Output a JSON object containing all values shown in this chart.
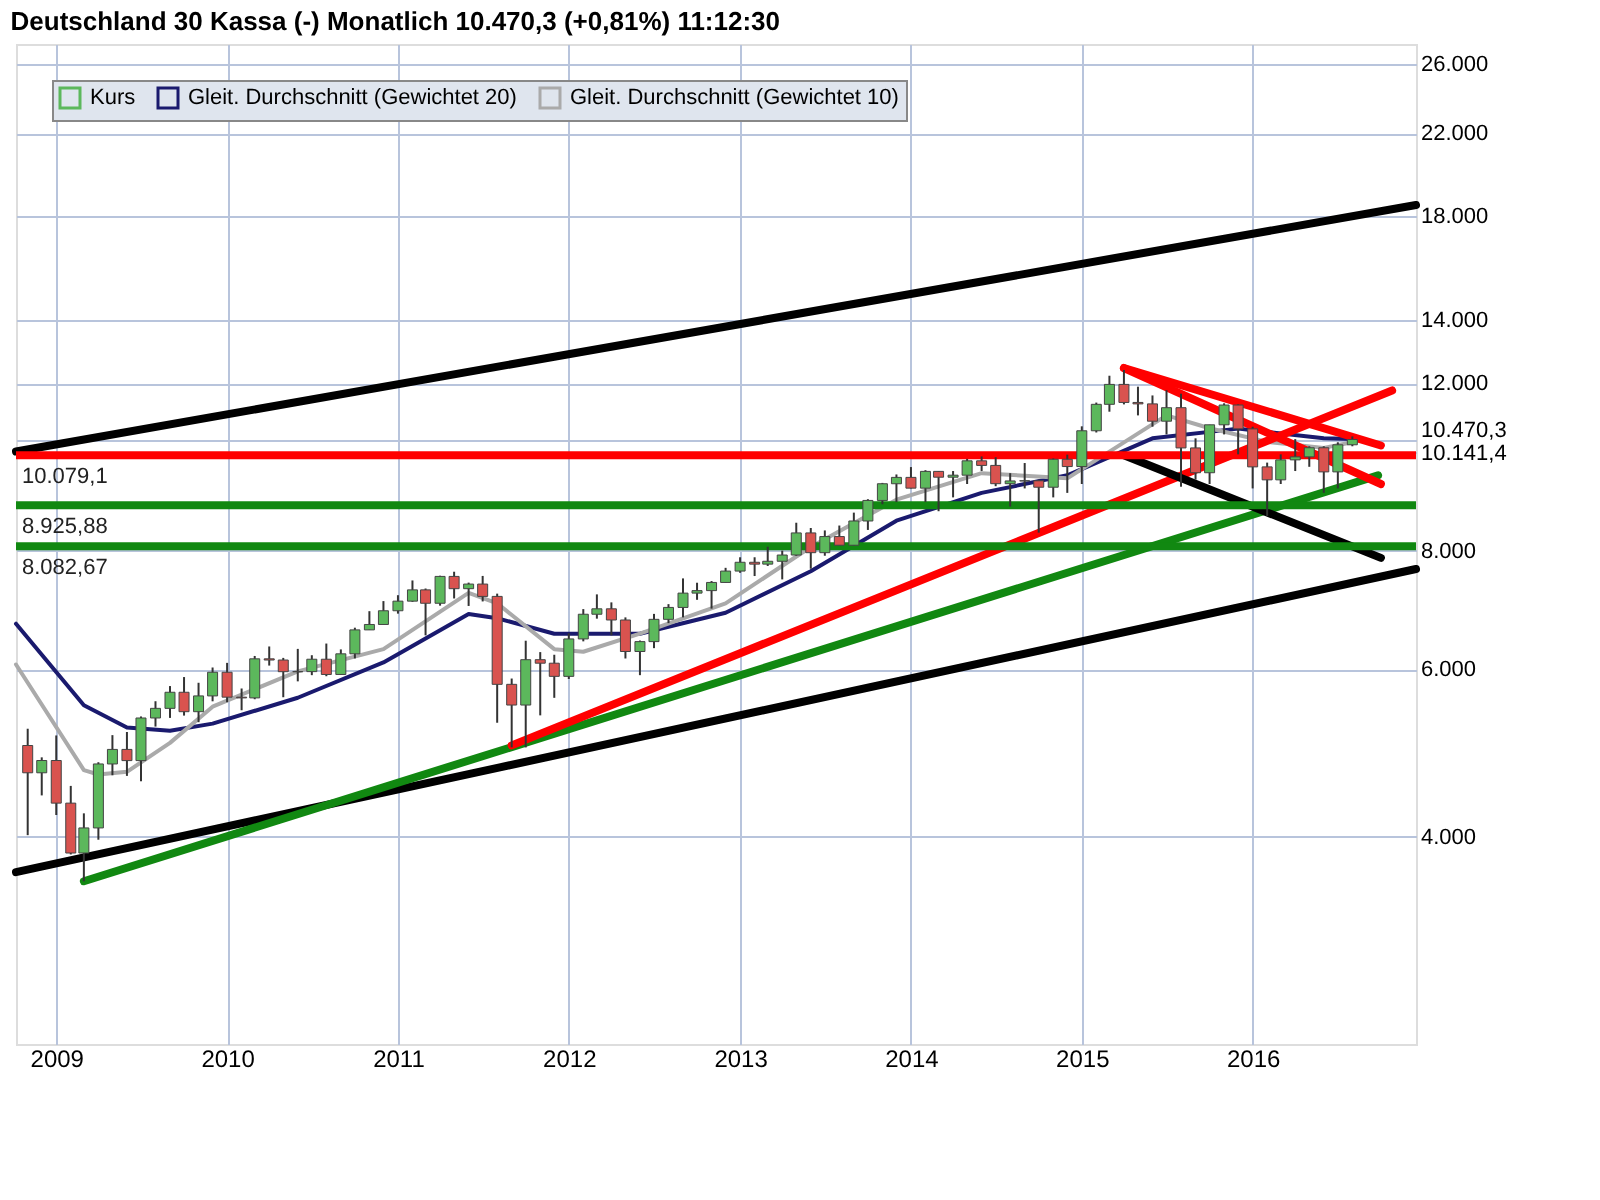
{
  "chart_data": {
    "type": "candlestick",
    "title": "Deutschland 30 Kassa (-)   Monatlich   10.470,3 (+0,81%)   11:12:30",
    "xlim": [
      "2008-10-07",
      "2016-12-15"
    ],
    "xticks": [
      "2009",
      "2010",
      "2011",
      "2012",
      "2013",
      "2014",
      "2015",
      "2016"
    ],
    "ylim": [
      2420,
      27300
    ],
    "log": "y",
    "grid": true,
    "legend": "top left",
    "yticks": [
      {
        "value": 4000,
        "label": "4.000"
      },
      {
        "value": 6000,
        "label": "6.000"
      },
      {
        "value": 8000,
        "label": "8.000"
      },
      {
        "value": 10141.4,
        "label": "10.141,4"
      },
      {
        "value": 10470.3,
        "label": "10.470,3"
      },
      {
        "value": 12000,
        "label": "12.000"
      },
      {
        "value": 14000,
        "label": "14.000"
      },
      {
        "value": 18000,
        "label": "18.000"
      },
      {
        "value": 22000,
        "label": "22.000"
      },
      {
        "value": 26000,
        "label": "26.000"
      }
    ],
    "ref_lines": [
      {
        "axis": "y",
        "value": 10079.1,
        "label": "10.079,1",
        "color": "#ff0000"
      },
      {
        "axis": "y",
        "value": 8925.88,
        "label": "8.925,88",
        "color": "#118811"
      },
      {
        "axis": "y",
        "value": 8082.67,
        "label": "8.082,67",
        "color": "#118811"
      }
    ],
    "series": [
      {
        "name": "Kurs",
        "type": "candlestick",
        "color": "#5cb85c",
        "x": [
          "2008-11",
          "2008-12",
          "2009-01",
          "2009-02",
          "2009-03",
          "2009-04",
          "2009-05",
          "2009-06",
          "2009-07",
          "2009-08",
          "2009-09",
          "2009-10",
          "2009-11",
          "2009-12",
          "2010-01",
          "2010-02",
          "2010-03",
          "2010-04",
          "2010-05",
          "2010-06",
          "2010-07",
          "2010-08",
          "2010-09",
          "2010-10",
          "2010-11",
          "2010-12",
          "2011-01",
          "2011-02",
          "2011-03",
          "2011-04",
          "2011-05",
          "2011-06",
          "2011-07",
          "2011-08",
          "2011-09",
          "2011-10",
          "2011-11",
          "2011-12",
          "2012-01",
          "2012-02",
          "2012-03",
          "2012-04",
          "2012-05",
          "2012-06",
          "2012-07",
          "2012-08",
          "2012-09",
          "2012-10",
          "2012-11",
          "2012-12",
          "2013-01",
          "2013-02",
          "2013-03",
          "2013-04",
          "2013-05",
          "2013-06",
          "2013-07",
          "2013-08",
          "2013-09",
          "2013-10",
          "2013-11",
          "2013-12",
          "2014-01",
          "2014-02",
          "2014-03",
          "2014-04",
          "2014-05",
          "2014-06",
          "2014-07",
          "2014-08",
          "2014-09",
          "2014-10",
          "2014-11",
          "2014-12",
          "2015-01",
          "2015-02",
          "2015-03",
          "2015-04",
          "2015-05",
          "2015-06",
          "2015-07",
          "2015-08",
          "2015-09",
          "2015-10",
          "2015-11",
          "2015-12",
          "2016-01",
          "2016-02",
          "2016-03",
          "2016-04",
          "2016-05",
          "2016-06",
          "2016-07",
          "2016-08"
        ],
        "ohlc": [
          [
            4988,
            5195,
            4014,
            4669
          ],
          [
            4669,
            4847,
            4420,
            4810
          ],
          [
            4810,
            5111,
            4215,
            4338
          ],
          [
            4338,
            4523,
            3831,
            3844
          ],
          [
            3844,
            4232,
            3589,
            4085
          ],
          [
            4085,
            4790,
            3970,
            4770
          ],
          [
            4770,
            5115,
            4641,
            4941
          ],
          [
            4941,
            5154,
            4634,
            4809
          ],
          [
            4809,
            5352,
            4574,
            5332
          ],
          [
            5332,
            5553,
            5222,
            5458
          ],
          [
            5458,
            5761,
            5333,
            5675
          ],
          [
            5675,
            5888,
            5363,
            5414
          ],
          [
            5414,
            5807,
            5278,
            5625
          ],
          [
            5625,
            6026,
            5552,
            5957
          ],
          [
            5957,
            6094,
            5540,
            5608
          ],
          [
            5608,
            5727,
            5433,
            5598
          ],
          [
            5598,
            6197,
            5580,
            6154
          ],
          [
            6154,
            6341,
            6054,
            6136
          ],
          [
            6136,
            6168,
            5607,
            5965
          ],
          [
            5965,
            6304,
            5827,
            5966
          ],
          [
            5966,
            6208,
            5915,
            6148
          ],
          [
            6148,
            6386,
            5900,
            5925
          ],
          [
            5925,
            6296,
            5918,
            6229
          ],
          [
            6229,
            6636,
            6160,
            6601
          ],
          [
            6601,
            6907,
            6599,
            6688
          ],
          [
            6688,
            7078,
            6688,
            6914
          ],
          [
            6914,
            7180,
            6866,
            7077
          ],
          [
            7077,
            7441,
            7065,
            7273
          ],
          [
            7273,
            7297,
            6514,
            7041
          ],
          [
            7041,
            7527,
            7000,
            7514
          ],
          [
            7514,
            7600,
            7123,
            7294
          ],
          [
            7294,
            7402,
            6995,
            7376
          ],
          [
            7376,
            7523,
            7072,
            7159
          ],
          [
            7159,
            7207,
            5271,
            5785
          ],
          [
            5785,
            5867,
            4966,
            5502
          ],
          [
            5502,
            6430,
            4965,
            6141
          ],
          [
            6141,
            6255,
            5366,
            6089
          ],
          [
            6089,
            6215,
            5599,
            5898
          ],
          [
            5898,
            6548,
            5860,
            6458
          ],
          [
            6458,
            6942,
            6420,
            6856
          ],
          [
            6856,
            7194,
            6783,
            6947
          ],
          [
            6947,
            7056,
            6515,
            6761
          ],
          [
            6761,
            6804,
            6159,
            6264
          ],
          [
            6264,
            6433,
            5915,
            6416
          ],
          [
            6416,
            6862,
            6315,
            6772
          ],
          [
            6772,
            7026,
            6710,
            6970
          ],
          [
            6970,
            7478,
            6804,
            7216
          ],
          [
            7216,
            7400,
            7100,
            7260
          ],
          [
            7260,
            7430,
            6950,
            7405
          ],
          [
            7405,
            7672,
            7400,
            7612
          ],
          [
            7612,
            7871,
            7580,
            7776
          ],
          [
            7776,
            7871,
            7521,
            7741
          ],
          [
            7741,
            8075,
            7707,
            7795
          ],
          [
            7795,
            7998,
            7460,
            7914
          ],
          [
            7914,
            8558,
            7900,
            8349
          ],
          [
            8349,
            8450,
            7655,
            7959
          ],
          [
            7959,
            8400,
            7900,
            8276
          ],
          [
            8276,
            8500,
            8100,
            8104
          ],
          [
            8104,
            8770,
            8100,
            8594
          ],
          [
            8594,
            9060,
            8410,
            9033
          ],
          [
            9033,
            9425,
            8950,
            9406
          ],
          [
            9406,
            9620,
            9000,
            9552
          ],
          [
            9552,
            9794,
            9300,
            9306
          ],
          [
            9306,
            9720,
            9000,
            9692
          ],
          [
            9692,
            9700,
            8800,
            9556
          ],
          [
            9556,
            9700,
            9100,
            9603
          ],
          [
            9603,
            9990,
            9400,
            9943
          ],
          [
            9943,
            10050,
            9700,
            9833
          ],
          [
            9833,
            10029,
            9350,
            9407
          ],
          [
            9407,
            9650,
            8900,
            9470
          ],
          [
            9470,
            9890,
            9300,
            9474
          ],
          [
            9474,
            9500,
            8355,
            9327
          ],
          [
            9327,
            10000,
            9100,
            9980
          ],
          [
            9980,
            10093,
            9200,
            9806
          ],
          [
            9806,
            10810,
            9400,
            10694
          ],
          [
            10694,
            11450,
            10650,
            11402
          ],
          [
            11402,
            12220,
            11200,
            11966
          ],
          [
            11966,
            12391,
            11400,
            11454
          ],
          [
            11454,
            11900,
            11100,
            11414
          ],
          [
            11414,
            11650,
            10800,
            10945
          ],
          [
            10945,
            11800,
            10600,
            11309
          ],
          [
            11309,
            11700,
            9338,
            10259
          ],
          [
            10259,
            10500,
            9500,
            9660
          ],
          [
            9660,
            10850,
            9400,
            10850
          ],
          [
            10850,
            11430,
            10600,
            11382
          ],
          [
            11382,
            11400,
            10100,
            10743
          ],
          [
            10743,
            10800,
            9300,
            9798
          ],
          [
            9798,
            9900,
            8700,
            9495
          ],
          [
            9495,
            10100,
            9400,
            9966
          ],
          [
            9966,
            10480,
            9700,
            10039
          ],
          [
            10039,
            10300,
            9800,
            10263
          ],
          [
            10263,
            10300,
            9200,
            9680
          ],
          [
            9680,
            10400,
            9300,
            10337
          ],
          [
            10337,
            10550,
            10300,
            10470
          ]
        ],
        "colors": [
          "#d9534f",
          "#5cb85c",
          "#d9534f",
          "#d9534f",
          "#5cb85c",
          "#5cb85c",
          "#5cb85c",
          "#d9534f",
          "#5cb85c",
          "#5cb85c",
          "#5cb85c",
          "#d9534f",
          "#5cb85c",
          "#5cb85c",
          "#d9534f",
          "#d9534f",
          "#5cb85c",
          "#d9534f",
          "#d9534f",
          "#5cb85c",
          "#5cb85c",
          "#d9534f",
          "#5cb85c",
          "#5cb85c",
          "#5cb85c",
          "#5cb85c",
          "#5cb85c",
          "#5cb85c",
          "#d9534f",
          "#5cb85c",
          "#d9534f",
          "#5cb85c",
          "#d9534f",
          "#d9534f",
          "#d9534f",
          "#5cb85c",
          "#d9534f",
          "#d9534f",
          "#5cb85c",
          "#5cb85c",
          "#5cb85c",
          "#d9534f",
          "#d9534f",
          "#5cb85c",
          "#5cb85c",
          "#5cb85c",
          "#5cb85c",
          "#5cb85c",
          "#5cb85c",
          "#5cb85c",
          "#5cb85c",
          "#d9534f",
          "#5cb85c",
          "#5cb85c",
          "#5cb85c",
          "#d9534f",
          "#5cb85c",
          "#d9534f",
          "#5cb85c",
          "#5cb85c",
          "#5cb85c",
          "#5cb85c",
          "#d9534f",
          "#5cb85c",
          "#d9534f",
          "#5cb85c",
          "#5cb85c",
          "#d9534f",
          "#d9534f",
          "#5cb85c",
          "#5cb85c",
          "#d9534f",
          "#5cb85c",
          "#d9534f",
          "#5cb85c",
          "#5cb85c",
          "#5cb85c",
          "#d9534f",
          "#d9534f",
          "#d9534f",
          "#5cb85c",
          "#d9534f",
          "#d9534f",
          "#5cb85c",
          "#5cb85c",
          "#d9534f",
          "#d9534f",
          "#d9534f",
          "#5cb85c",
          "#5cb85c",
          "#5cb85c",
          "#d9534f",
          "#5cb85c",
          "#5cb85c"
        ]
      },
      {
        "name": "Gleit. Durchschnitt (Gewichtet 20)",
        "type": "line",
        "color": "#1a1a6e",
        "x": [
          "2008-10-07",
          "2009-03",
          "2009-06",
          "2009-09",
          "2009-12",
          "2010-06",
          "2010-12",
          "2011-06",
          "2011-08",
          "2011-12",
          "2012-06",
          "2012-12",
          "2013-06",
          "2013-12",
          "2014-06",
          "2014-12",
          "2015-06",
          "2015-12",
          "2016-06",
          "2016-08"
        ],
        "values": [
          6700,
          5500,
          5210,
          5170,
          5260,
          5600,
          6100,
          6860,
          6790,
          6540,
          6540,
          6880,
          7610,
          8600,
          9200,
          9600,
          10500,
          10750,
          10500,
          10480
        ]
      },
      {
        "name": "Gleit. Durchschnitt (Gewichtet 10)",
        "type": "line",
        "color": "#aaaaaa",
        "x": [
          "2008-10-07",
          "2009-03",
          "2009-04",
          "2009-06",
          "2009-09",
          "2009-12",
          "2010-06",
          "2010-12",
          "2011-06",
          "2011-08",
          "2011-12",
          "2012-02",
          "2012-06",
          "2012-12",
          "2013-06",
          "2013-12",
          "2014-06",
          "2014-12",
          "2015-07",
          "2015-10",
          "2016-02",
          "2016-06",
          "2016-08"
        ],
        "values": [
          6070,
          4700,
          4650,
          4680,
          5020,
          5480,
          5970,
          6300,
          7220,
          7040,
          6300,
          6260,
          6540,
          7040,
          8070,
          9050,
          9650,
          9530,
          11100,
          10760,
          10410,
          10260,
          10400
        ]
      },
      {
        "type": "line",
        "color": "#000000",
        "x": [
          "2008-10-07",
          "2016-12-15"
        ],
        "values": [
          10170,
          18480
        ]
      },
      {
        "type": "line",
        "color": "#000000",
        "x": [
          "2008-10-07",
          "2016-12-15"
        ],
        "values": [
          3670,
          7650
        ]
      },
      {
        "type": "line",
        "color": "#118811",
        "x": [
          "2009-03",
          "2016-09-25"
        ],
        "values": [
          3590,
          9600
        ]
      },
      {
        "type": "line",
        "color": "#ff0000",
        "x": [
          "2011-09",
          "2016-10-25"
        ],
        "values": [
          4990,
          11790
        ]
      },
      {
        "type": "line",
        "color": "#ff0000",
        "x": [
          "2015-04",
          "2016-10-01"
        ],
        "values": [
          12450,
          10320
        ]
      },
      {
        "type": "line",
        "color": "#ff0000",
        "x": [
          "2015-04",
          "2016-10-01"
        ],
        "values": [
          12450,
          9400
        ]
      },
      {
        "type": "line",
        "color": "#000000",
        "x": [
          "2015-04",
          "2016-10-01"
        ],
        "values": [
          10080,
          7860
        ]
      }
    ]
  }
}
